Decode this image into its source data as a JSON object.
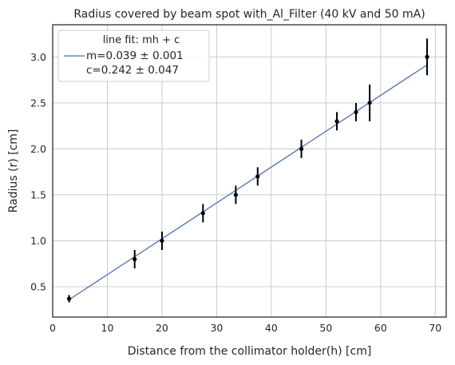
{
  "chart_data": {
    "type": "scatter",
    "title": "Radius covered by beam spot with_Al_Filter (40 kV and 50 mA)",
    "xlabel": "Distance from the  collimator holder(h) [cm]",
    "ylabel": "Radius (r) [cm]",
    "xlim": [
      0,
      72
    ],
    "ylim": [
      0.17,
      3.35
    ],
    "xticks": [
      0,
      10,
      20,
      30,
      40,
      50,
      60,
      70
    ],
    "yticks": [
      0.5,
      1.0,
      1.5,
      2.0,
      2.5,
      3.0
    ],
    "xtick_labels": [
      "0",
      "10",
      "20",
      "30",
      "40",
      "50",
      "60",
      "70"
    ],
    "ytick_labels": [
      "0.5",
      "1.0",
      "1.5",
      "2.0",
      "2.5",
      "3.0"
    ],
    "grid": true,
    "legend": {
      "title": "line fit: mh + c",
      "lines": [
        " m=0.039 ± 0.001",
        "c=0.242 ± 0.047"
      ],
      "placement": "top-left",
      "line_color": "#4c72b0"
    },
    "points": {
      "x": [
        3,
        15,
        20,
        27.5,
        33.5,
        37.5,
        45.5,
        52,
        55.5,
        58,
        68.5
      ],
      "y": [
        0.37,
        0.8,
        1.0,
        1.3,
        1.5,
        1.7,
        2.0,
        2.3,
        2.4,
        2.5,
        3.0
      ],
      "yerr": [
        0.04,
        0.1,
        0.1,
        0.1,
        0.1,
        0.1,
        0.1,
        0.1,
        0.1,
        0.2,
        0.2
      ],
      "color": "#000000"
    },
    "fit": {
      "m": 0.039,
      "c": 0.242,
      "x_range": [
        3,
        68.5
      ],
      "color": "#4c72b0"
    }
  }
}
